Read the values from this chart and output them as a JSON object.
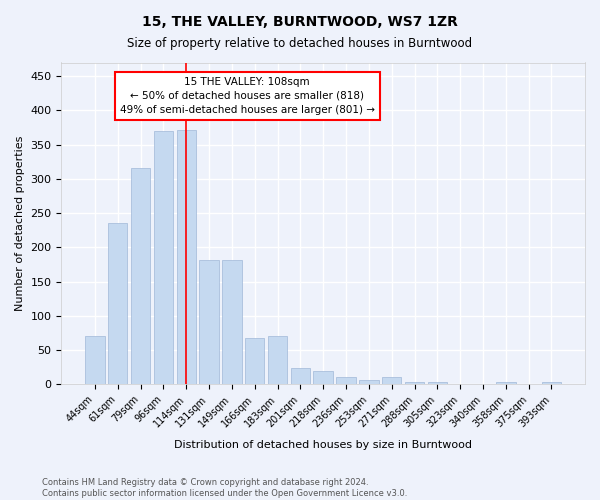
{
  "title1": "15, THE VALLEY, BURNTWOOD, WS7 1ZR",
  "title2": "Size of property relative to detached houses in Burntwood",
  "xlabel": "Distribution of detached houses by size in Burntwood",
  "ylabel": "Number of detached properties",
  "categories": [
    "44sqm",
    "61sqm",
    "79sqm",
    "96sqm",
    "114sqm",
    "131sqm",
    "149sqm",
    "166sqm",
    "183sqm",
    "201sqm",
    "218sqm",
    "236sqm",
    "253sqm",
    "271sqm",
    "288sqm",
    "305sqm",
    "323sqm",
    "340sqm",
    "358sqm",
    "375sqm",
    "393sqm"
  ],
  "values": [
    70,
    236,
    316,
    370,
    371,
    181,
    181,
    68,
    70,
    24,
    20,
    11,
    6,
    11,
    4,
    4,
    0,
    0,
    4,
    0,
    4
  ],
  "bar_color": "#c5d9f0",
  "bar_edge_color": "#a0b8d8",
  "red_line_index": 4,
  "annotation_line1": "15 THE VALLEY: 108sqm",
  "annotation_line2": "← 50% of detached houses are smaller (818)",
  "annotation_line3": "49% of semi-detached houses are larger (801) →",
  "footnote1": "Contains HM Land Registry data © Crown copyright and database right 2024.",
  "footnote2": "Contains public sector information licensed under the Open Government Licence v3.0.",
  "ylim": [
    0,
    470
  ],
  "yticks": [
    0,
    50,
    100,
    150,
    200,
    250,
    300,
    350,
    400,
    450
  ],
  "bg_color": "#eef2fb",
  "grid_color": "#ffffff"
}
